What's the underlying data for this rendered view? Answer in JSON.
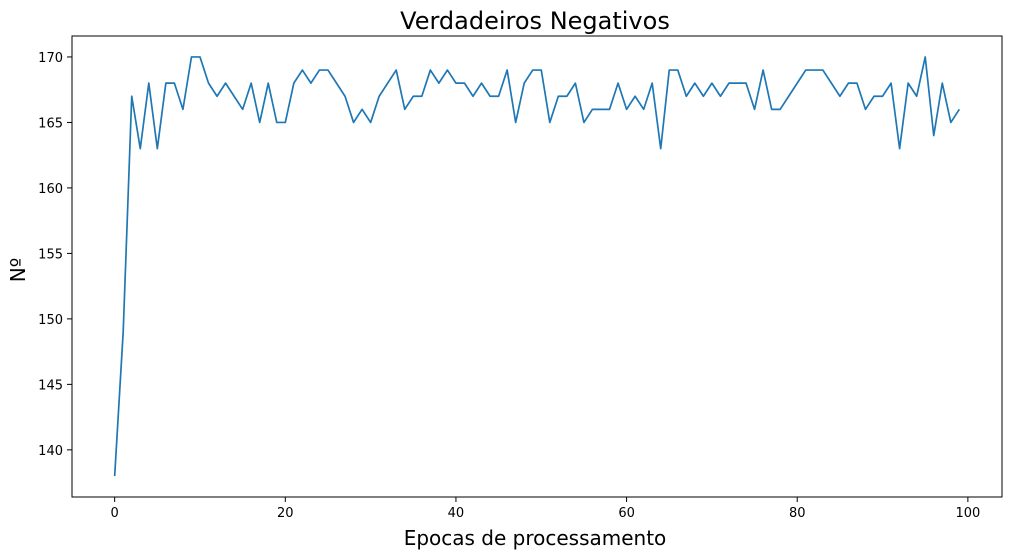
{
  "chart_data": {
    "type": "line",
    "title": "Verdadeiros Negativos",
    "xlabel": "Epocas de processamento",
    "ylabel": "Nº",
    "xlim": [
      -5,
      104
    ],
    "ylim": [
      136.4,
      171.6
    ],
    "xticks": [
      0,
      20,
      40,
      60,
      80,
      100
    ],
    "yticks": [
      140,
      145,
      150,
      155,
      160,
      165,
      170
    ],
    "grid": false,
    "line_color": "#1f77b4",
    "series": [
      {
        "x": [
          0,
          1,
          2,
          3,
          4,
          5,
          6,
          7,
          8,
          9,
          10,
          11,
          12,
          13,
          14,
          15,
          16,
          17,
          18,
          19,
          20,
          21,
          22,
          23,
          24,
          25,
          26,
          27,
          28,
          29,
          30,
          31,
          32,
          33,
          34,
          35,
          36,
          37,
          38,
          39,
          40,
          41,
          42,
          43,
          44,
          45,
          46,
          47,
          48,
          49,
          50,
          51,
          52,
          53,
          54,
          55,
          56,
          57,
          58,
          59,
          60,
          61,
          62,
          63,
          64,
          65,
          66,
          67,
          68,
          69,
          70,
          71,
          72,
          73,
          74,
          75,
          76,
          77,
          78,
          79,
          80,
          81,
          82,
          83,
          84,
          85,
          86,
          87,
          88,
          89,
          90,
          91,
          92,
          93,
          94,
          95,
          96,
          97,
          98,
          99
        ],
        "values": [
          138,
          149,
          167,
          163,
          168,
          163,
          168,
          168,
          166,
          170,
          170,
          168,
          167,
          168,
          167,
          166,
          168,
          165,
          168,
          165,
          165,
          168,
          169,
          168,
          169,
          169,
          168,
          167,
          165,
          166,
          165,
          167,
          168,
          169,
          166,
          167,
          167,
          169,
          168,
          169,
          168,
          168,
          167,
          168,
          167,
          167,
          169,
          165,
          168,
          169,
          169,
          165,
          167,
          167,
          168,
          165,
          166,
          166,
          166,
          168,
          166,
          167,
          166,
          168,
          163,
          169,
          169,
          167,
          168,
          167,
          168,
          167,
          168,
          168,
          168,
          166,
          169,
          166,
          166,
          167,
          168,
          169,
          169,
          169,
          168,
          167,
          168,
          168,
          166,
          167,
          167,
          168,
          163,
          168,
          167,
          170,
          164,
          168,
          165,
          166
        ]
      }
    ]
  }
}
